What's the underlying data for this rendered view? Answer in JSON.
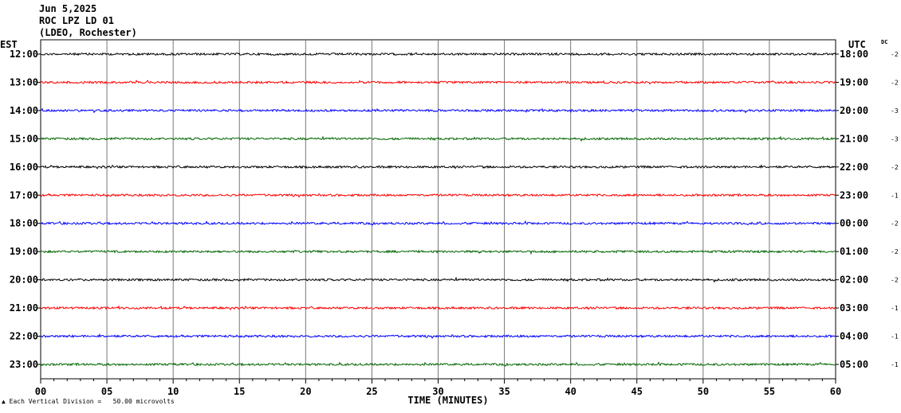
{
  "header": {
    "date": "Jun 5,2025",
    "station": "ROC LPZ LD 01",
    "network": "(LDEO, Rochester)"
  },
  "footer": {
    "scale_note": "Each Vertical Division =   50.00 microvolts"
  },
  "chart_data": {
    "type": "line",
    "title": "",
    "xlabel": "TIME (MINUTES)",
    "left_axis_label": "EST",
    "right_axis_label": "UTC",
    "dc_label": "DC",
    "xlim": [
      0,
      60
    ],
    "x_ticks": [
      "00",
      "05",
      "10",
      "15",
      "20",
      "25",
      "30",
      "35",
      "40",
      "45",
      "50",
      "55",
      "60"
    ],
    "vertical_grid": true,
    "trace_colors": [
      "#000000",
      "#ff0000",
      "#0000ff",
      "#006600"
    ],
    "rows": [
      {
        "local": "12:00",
        "utc": "18:00",
        "dc": "-2"
      },
      {
        "local": "13:00",
        "utc": "19:00",
        "dc": "-2"
      },
      {
        "local": "14:00",
        "utc": "20:00",
        "dc": "-3"
      },
      {
        "local": "15:00",
        "utc": "21:00",
        "dc": "-3"
      },
      {
        "local": "16:00",
        "utc": "22:00",
        "dc": "-2"
      },
      {
        "local": "17:00",
        "utc": "23:00",
        "dc": "-1"
      },
      {
        "local": "18:00",
        "utc": "00:00",
        "dc": "-2"
      },
      {
        "local": "19:00",
        "utc": "01:00",
        "dc": "-2"
      },
      {
        "local": "20:00",
        "utc": "02:00",
        "dc": "-2"
      },
      {
        "local": "21:00",
        "utc": "03:00",
        "dc": "-1"
      },
      {
        "local": "22:00",
        "utc": "04:00",
        "dc": "-1"
      },
      {
        "local": "23:00",
        "utc": "05:00",
        "dc": "-1"
      }
    ]
  }
}
